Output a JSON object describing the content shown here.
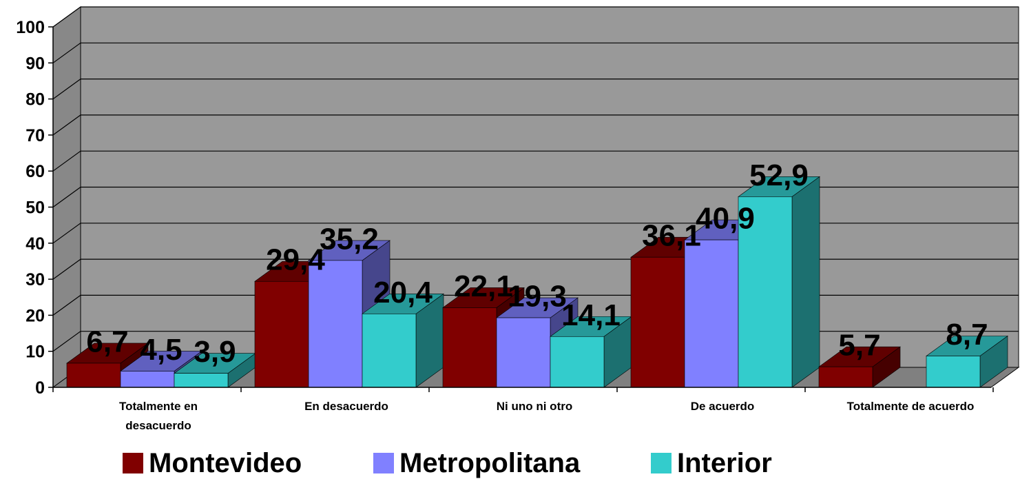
{
  "chart_data": {
    "type": "bar",
    "categories": [
      "Totalmente en desacuerdo",
      "En desacuerdo",
      "Ni uno ni otro",
      "De acuerdo",
      "Totalmente de acuerdo"
    ],
    "category_lines": [
      [
        "Totalmente en",
        "desacuerdo"
      ],
      [
        "En desacuerdo"
      ],
      [
        "Ni uno ni otro"
      ],
      [
        "De acuerdo"
      ],
      [
        "Totalmente de acuerdo"
      ]
    ],
    "series": [
      {
        "name": "Montevideo",
        "values": [
          6.7,
          29.4,
          22.1,
          36.1,
          5.7
        ],
        "labels": [
          "6,7",
          "29,4",
          "22,1",
          "36,1",
          "5,7"
        ],
        "color": "#800000"
      },
      {
        "name": "Metropolitana",
        "values": [
          4.5,
          35.2,
          19.3,
          40.9,
          null
        ],
        "labels": [
          "4,5",
          "35,2",
          "19,3",
          "40,9",
          ""
        ],
        "color": "#8080ff"
      },
      {
        "name": "Interior",
        "values": [
          3.9,
          20.4,
          14.1,
          52.9,
          8.7
        ],
        "labels": [
          "3,9",
          "20,4",
          "14,1",
          "52,9",
          "8,7"
        ],
        "color": "#33cccc"
      }
    ],
    "ylim": [
      0,
      100
    ],
    "yticks": [
      "0",
      "10",
      "20",
      "30",
      "40",
      "50",
      "60",
      "70",
      "80",
      "90",
      "100"
    ],
    "grid": true,
    "legend_position": "bottom",
    "wall_color": "#999999",
    "floor_color": "#808080"
  }
}
